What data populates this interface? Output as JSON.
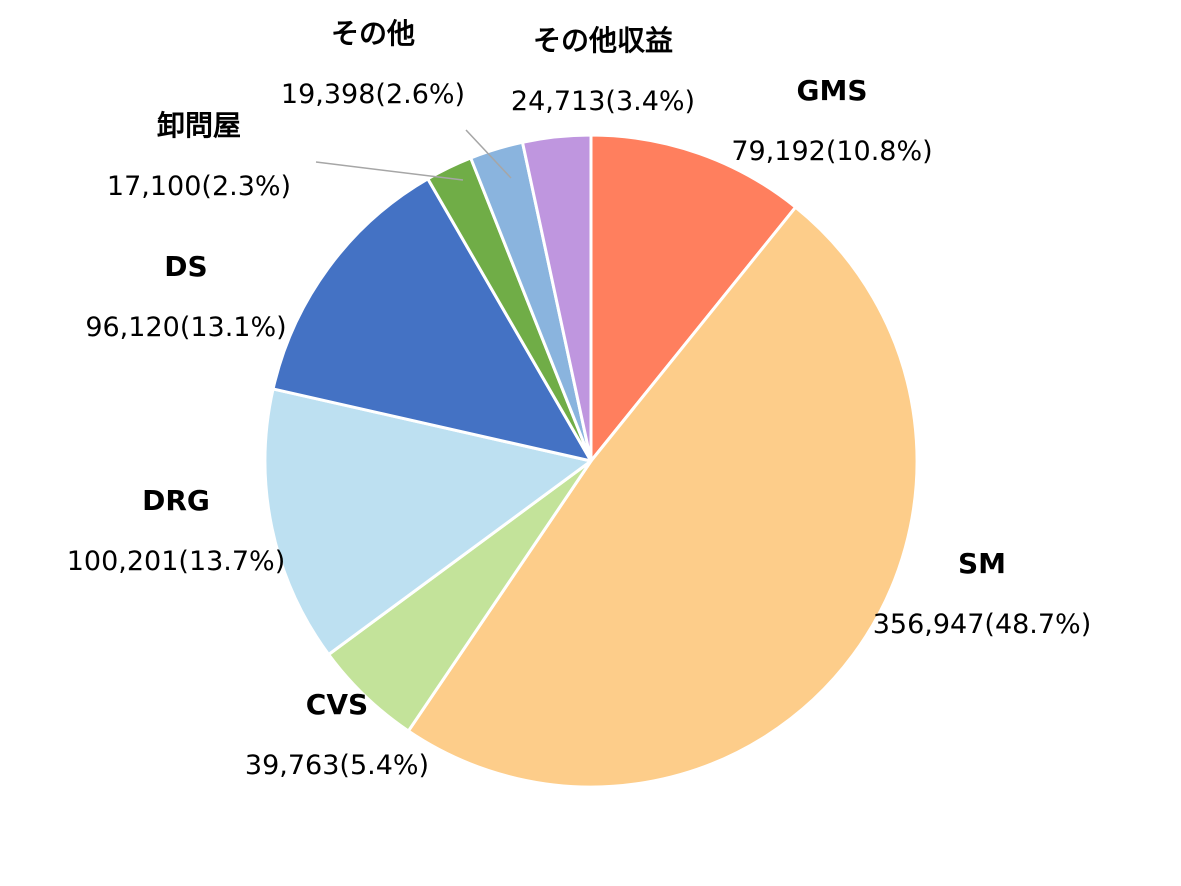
{
  "chart_data": {
    "type": "pie",
    "title": "",
    "start_angle_deg": 0,
    "direction": "clockwise",
    "slices": [
      {
        "name": "GMS",
        "value": 79192,
        "value_label": "79,192",
        "percent_label": "(10.8%)",
        "color": "#ff7f5e"
      },
      {
        "name": "SM",
        "value": 356947,
        "value_label": "356,947",
        "percent_label": "(48.7%)",
        "color": "#fdcd8a"
      },
      {
        "name": "CVS",
        "value": 39763,
        "value_label": "39,763",
        "percent_label": "(5.4%)",
        "color": "#c3e39a"
      },
      {
        "name": "DRG",
        "value": 100201,
        "value_label": "100,201",
        "percent_label": "(13.7%)",
        "color": "#bde0f1"
      },
      {
        "name": "DS",
        "value": 96120,
        "value_label": "96,120",
        "percent_label": "(13.1%)",
        "color": "#4472c4"
      },
      {
        "name": "卸問屋",
        "value": 17100,
        "value_label": "17,100",
        "percent_label": "(2.3%)",
        "color": "#70ad47"
      },
      {
        "name": "その他",
        "value": 19398,
        "value_label": "19,398",
        "percent_label": "(2.6%)",
        "color": "#8ab4de"
      },
      {
        "name": "その他収益",
        "value": 24713,
        "value_label": "24,713",
        "percent_label": "(3.4%)",
        "color": "#bf96df"
      }
    ]
  }
}
